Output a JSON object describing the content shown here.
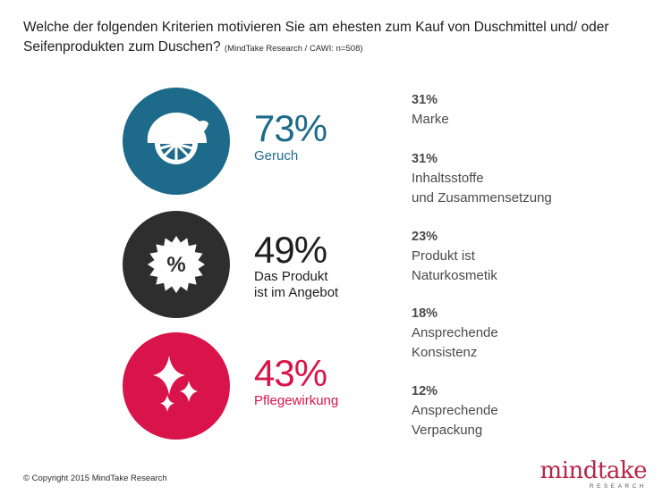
{
  "title": {
    "question": "Welche der folgenden Kriterien motivieren Sie am ehesten zum Kauf von Duschmittel und/ oder Seifenprodukten zum Duschen?",
    "source": "(MindTake Research / CAWI: n=508)"
  },
  "chart_data": {
    "type": "bar",
    "categories": [
      "Geruch",
      "Das Produkt ist im Angebot",
      "Pflegewirkung",
      "Marke",
      "Inhaltsstoffe und Zusammensetzung",
      "Produkt ist Naturkosmetik",
      "Ansprechende Konsistenz",
      "Ansprechende Verpackung"
    ],
    "values": [
      73,
      49,
      43,
      31,
      31,
      23,
      18,
      12
    ],
    "unit": "%",
    "featured": [
      {
        "pct": "73%",
        "label_lines": [
          "Geruch"
        ],
        "icon": "lemon-slice-icon",
        "color": "#1e6a8a"
      },
      {
        "pct": "49%",
        "label_lines": [
          "Das Produkt",
          "ist im Angebot"
        ],
        "icon": "percent-badge-icon",
        "color": "#2e2e2e"
      },
      {
        "pct": "43%",
        "label_lines": [
          "Pflegewirkung"
        ],
        "icon": "sparkle-icon",
        "color": "#d9144a"
      }
    ],
    "others": [
      {
        "pct": "31%",
        "label_lines": [
          "Marke"
        ]
      },
      {
        "pct": "31%",
        "label_lines": [
          "Inhaltsstoffe",
          "und Zusammensetzung"
        ]
      },
      {
        "pct": "23%",
        "label_lines": [
          "Produkt ist",
          "Naturkosmetik"
        ]
      },
      {
        "pct": "18%",
        "label_lines": [
          "Ansprechende",
          "Konsistenz"
        ]
      },
      {
        "pct": "12%",
        "label_lines": [
          "Ansprechende",
          "Verpackung"
        ]
      }
    ]
  },
  "footer": {
    "copyright": "© Copyright 2015 MindTake Research",
    "logo_text": "mindtake",
    "logo_sub": "RESEARCH",
    "logo_color": "#b5254a"
  },
  "icon_colors": {
    "lemon_fill": "#ffffff",
    "lemon_segments": "#1e6a8a"
  }
}
